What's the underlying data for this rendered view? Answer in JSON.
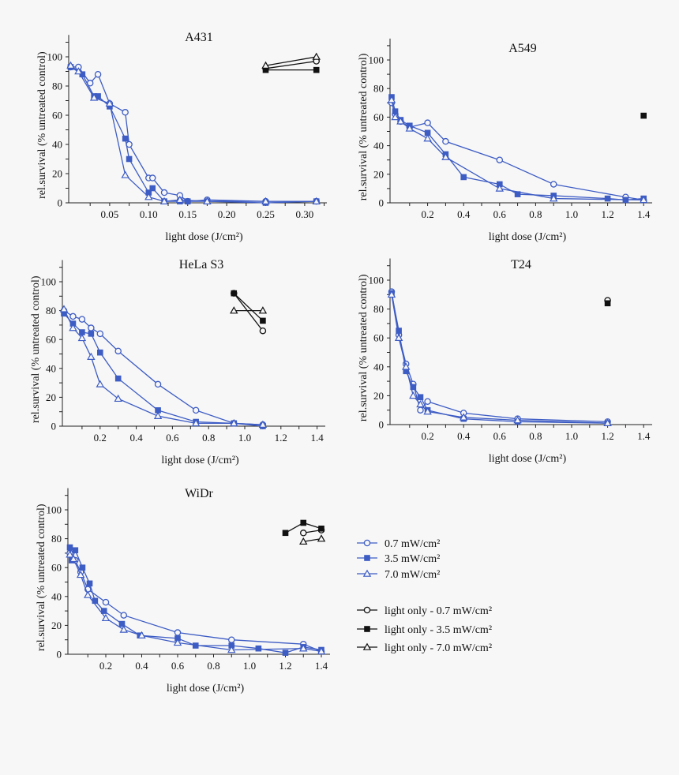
{
  "colors": {
    "treated": "#3d5cc4",
    "light_only": "#111111"
  },
  "legend": {
    "placement": "right of WiDr panel",
    "entries": [
      {
        "label": "0.7 mW/cm²",
        "marker": "circle-open",
        "group": "treated"
      },
      {
        "label": "3.5 mW/cm²",
        "marker": "square-filled",
        "group": "treated"
      },
      {
        "label": "7.0 mW/cm²",
        "marker": "triangle-open",
        "group": "treated"
      },
      {
        "label": "light only - 0.7 mW/cm²",
        "marker": "circle-open",
        "group": "light_only"
      },
      {
        "label": "light only - 3.5 mW/cm²",
        "marker": "square-filled",
        "group": "light_only"
      },
      {
        "label": "light only - 7.0 mW/cm²",
        "marker": "triangle-open",
        "group": "light_only"
      }
    ]
  },
  "chart_data": [
    {
      "type": "line",
      "title": "A431",
      "xlabel": "light dose (J/cm²)",
      "ylabel": "rel.survival (% untreated control)",
      "xlim": [
        0,
        0.33
      ],
      "ylim": [
        0,
        115
      ],
      "xticks": [
        "0.05",
        "0.10",
        "0.15",
        "0.20",
        "0.25",
        "0.30"
      ],
      "xtick_values": [
        0.05,
        0.1,
        0.15,
        0.2,
        0.25,
        0.3
      ],
      "xminor": 0.025,
      "yticks": [
        "0",
        "20",
        "40",
        "60",
        "80",
        "100"
      ],
      "ytick_values": [
        0,
        20,
        40,
        60,
        80,
        100
      ],
      "grid": false,
      "series": [
        {
          "legend": 0,
          "points": [
            [
              0,
              93
            ],
            [
              0.01,
              93
            ],
            [
              0.025,
              82
            ],
            [
              0.035,
              88
            ],
            [
              0.05,
              68
            ],
            [
              0.07,
              62
            ],
            [
              0.075,
              40
            ],
            [
              0.1,
              17
            ],
            [
              0.105,
              17
            ],
            [
              0.12,
              7
            ],
            [
              0.14,
              5
            ],
            [
              0.15,
              1
            ],
            [
              0.175,
              2
            ],
            [
              0.25,
              1
            ],
            [
              0.315,
              1
            ]
          ]
        },
        {
          "legend": 1,
          "points": [
            [
              0,
              93
            ],
            [
              0.015,
              88
            ],
            [
              0.03,
              73
            ],
            [
              0.035,
              73
            ],
            [
              0.05,
              66
            ],
            [
              0.07,
              44
            ],
            [
              0.075,
              30
            ],
            [
              0.1,
              7
            ],
            [
              0.105,
              10
            ],
            [
              0.12,
              1
            ],
            [
              0.14,
              1
            ],
            [
              0.15,
              1
            ],
            [
              0.175,
              1
            ],
            [
              0.25,
              0
            ],
            [
              0.315,
              1
            ]
          ]
        },
        {
          "legend": 2,
          "points": [
            [
              0,
              94
            ],
            [
              0.01,
              90
            ],
            [
              0.03,
              72
            ],
            [
              0.05,
              68
            ],
            [
              0.07,
              19
            ],
            [
              0.1,
              4
            ],
            [
              0.12,
              1
            ],
            [
              0.14,
              2
            ],
            [
              0.175,
              1
            ],
            [
              0.25,
              1
            ],
            [
              0.315,
              1
            ]
          ]
        },
        {
          "legend": 3,
          "points": [
            [
              0.25,
              92
            ],
            [
              0.315,
              97
            ]
          ]
        },
        {
          "legend": 4,
          "points": [
            [
              0.25,
              91
            ],
            [
              0.315,
              91
            ]
          ]
        },
        {
          "legend": 5,
          "points": [
            [
              0.25,
              94
            ],
            [
              0.315,
              100
            ]
          ]
        }
      ]
    },
    {
      "type": "line",
      "title": "A549",
      "xlabel": "light dose (J/cm²)",
      "ylabel": "rel.survival (% untreated control)",
      "xlim": [
        0,
        1.45
      ],
      "ylim": [
        0,
        115
      ],
      "xticks": [
        "0.2",
        "0.4",
        "0.6",
        "0.8",
        "1.0",
        "1.2",
        "1.4"
      ],
      "xtick_values": [
        0.2,
        0.4,
        0.6,
        0.8,
        1.0,
        1.2,
        1.4
      ],
      "xminor": 0.1,
      "yticks": [
        "0",
        "20",
        "40",
        "60",
        "80",
        "100"
      ],
      "ytick_values": [
        0,
        20,
        40,
        60,
        80,
        100
      ],
      "grid": false,
      "series": [
        {
          "legend": 0,
          "points": [
            [
              0,
              70
            ],
            [
              0.02,
              62
            ],
            [
              0.05,
              57
            ],
            [
              0.1,
              53
            ],
            [
              0.2,
              56
            ],
            [
              0.3,
              43
            ],
            [
              0.6,
              30
            ],
            [
              0.9,
              13
            ],
            [
              1.3,
              4
            ],
            [
              1.4,
              2
            ]
          ]
        },
        {
          "legend": 1,
          "points": [
            [
              0,
              74
            ],
            [
              0.02,
              64
            ],
            [
              0.05,
              58
            ],
            [
              0.1,
              54
            ],
            [
              0.2,
              49
            ],
            [
              0.3,
              34
            ],
            [
              0.4,
              18
            ],
            [
              0.6,
              13
            ],
            [
              0.7,
              6
            ],
            [
              0.9,
              5
            ],
            [
              1.2,
              3
            ],
            [
              1.3,
              2
            ],
            [
              1.4,
              3
            ]
          ]
        },
        {
          "legend": 2,
          "points": [
            [
              0,
              72
            ],
            [
              0.02,
              60
            ],
            [
              0.05,
              57
            ],
            [
              0.1,
              52
            ],
            [
              0.2,
              45
            ],
            [
              0.3,
              32
            ],
            [
              0.6,
              10
            ],
            [
              0.9,
              3
            ],
            [
              1.4,
              2
            ]
          ]
        },
        {
          "legend": 4,
          "points": [
            [
              1.4,
              61
            ]
          ]
        }
      ]
    },
    {
      "type": "line",
      "title": "HeLa S3",
      "xlabel": "light dose (J/cm²)",
      "ylabel": "rel.survival (% untreated control)",
      "xlim": [
        0,
        1.45
      ],
      "ylim": [
        0,
        115
      ],
      "xticks": [
        "0.2",
        "0.4",
        "0.6",
        "0.8",
        "1.0",
        "1.2",
        "1.4"
      ],
      "xtick_values": [
        0.2,
        0.4,
        0.6,
        0.8,
        1.0,
        1.2,
        1.4
      ],
      "xminor": 0.1,
      "yticks": [
        "0",
        "20",
        "40",
        "60",
        "80",
        "100"
      ],
      "ytick_values": [
        0,
        20,
        40,
        60,
        80,
        100
      ],
      "grid": false,
      "series": [
        {
          "legend": 0,
          "points": [
            [
              0,
              80
            ],
            [
              0.05,
              76
            ],
            [
              0.1,
              74
            ],
            [
              0.15,
              68
            ],
            [
              0.2,
              64
            ],
            [
              0.3,
              52
            ],
            [
              0.52,
              29
            ],
            [
              0.73,
              11
            ],
            [
              0.94,
              2
            ],
            [
              1.1,
              1
            ]
          ]
        },
        {
          "legend": 1,
          "points": [
            [
              0,
              78
            ],
            [
              0.05,
              71
            ],
            [
              0.1,
              65
            ],
            [
              0.15,
              64
            ],
            [
              0.2,
              51
            ],
            [
              0.3,
              33
            ],
            [
              0.52,
              11
            ],
            [
              0.73,
              3
            ],
            [
              0.94,
              2
            ],
            [
              1.1,
              0
            ]
          ]
        },
        {
          "legend": 2,
          "points": [
            [
              0,
              81
            ],
            [
              0.05,
              68
            ],
            [
              0.1,
              61
            ],
            [
              0.15,
              48
            ],
            [
              0.2,
              29
            ],
            [
              0.3,
              19
            ],
            [
              0.52,
              7
            ],
            [
              0.73,
              2
            ],
            [
              0.94,
              2
            ],
            [
              1.1,
              1
            ]
          ]
        },
        {
          "legend": 3,
          "points": [
            [
              0.94,
              92
            ],
            [
              1.1,
              66
            ]
          ]
        },
        {
          "legend": 4,
          "points": [
            [
              0.94,
              92
            ],
            [
              1.1,
              73
            ]
          ]
        },
        {
          "legend": 5,
          "points": [
            [
              0.94,
              80
            ],
            [
              1.1,
              80
            ]
          ]
        }
      ]
    },
    {
      "type": "line",
      "title": "T24",
      "xlabel": "light dose (J/cm²)",
      "ylabel": "rel.survival (% untreated control)",
      "xlim": [
        0,
        1.45
      ],
      "ylim": [
        0,
        115
      ],
      "xticks": [
        "0.2",
        "0.4",
        "0.6",
        "0.8",
        "1.0",
        "1.2",
        "1.4"
      ],
      "xtick_values": [
        0.2,
        0.4,
        0.6,
        0.8,
        1.0,
        1.2,
        1.4
      ],
      "xminor": 0.1,
      "yticks": [
        "0",
        "20",
        "40",
        "60",
        "80",
        "100"
      ],
      "ytick_values": [
        0,
        20,
        40,
        60,
        80,
        100
      ],
      "grid": false,
      "series": [
        {
          "legend": 0,
          "points": [
            [
              0,
              92
            ],
            [
              0.04,
              62
            ],
            [
              0.08,
              42
            ],
            [
              0.12,
              28
            ],
            [
              0.16,
              10
            ],
            [
              0.2,
              16
            ],
            [
              0.4,
              8
            ],
            [
              0.7,
              4
            ],
            [
              1.2,
              2
            ]
          ]
        },
        {
          "legend": 1,
          "points": [
            [
              0,
              91
            ],
            [
              0.04,
              65
            ],
            [
              0.08,
              37
            ],
            [
              0.12,
              26
            ],
            [
              0.16,
              19
            ],
            [
              0.2,
              10
            ],
            [
              0.4,
              4
            ],
            [
              0.7,
              2
            ],
            [
              1.2,
              1
            ]
          ]
        },
        {
          "legend": 2,
          "points": [
            [
              0,
              90
            ],
            [
              0.04,
              60
            ],
            [
              0.08,
              40
            ],
            [
              0.12,
              20
            ],
            [
              0.16,
              14
            ],
            [
              0.2,
              9
            ],
            [
              0.4,
              5
            ],
            [
              0.7,
              3
            ],
            [
              1.2,
              1
            ]
          ]
        },
        {
          "legend": 3,
          "points": [
            [
              1.2,
              86
            ]
          ]
        },
        {
          "legend": 4,
          "points": [
            [
              1.2,
              84
            ]
          ]
        }
      ]
    },
    {
      "type": "line",
      "title": "WiDr",
      "xlabel": "light dose (J/cm²)",
      "ylabel": "rel.survival (% untreated control)",
      "xlim": [
        0,
        1.45
      ],
      "ylim": [
        0,
        115
      ],
      "xticks": [
        "0.2",
        "0.4",
        "0.6",
        "0.8",
        "1.0",
        "1.2",
        "1.4"
      ],
      "xtick_values": [
        0.2,
        0.4,
        0.6,
        0.8,
        1.0,
        1.2,
        1.4
      ],
      "xminor": 0.1,
      "yticks": [
        "0",
        "20",
        "40",
        "60",
        "80",
        "100"
      ],
      "ytick_values": [
        0,
        20,
        40,
        60,
        80,
        100
      ],
      "grid": false,
      "series": [
        {
          "legend": 0,
          "points": [
            [
              0,
              70
            ],
            [
              0.03,
              65
            ],
            [
              0.06,
              57
            ],
            [
              0.1,
              45
            ],
            [
              0.2,
              36
            ],
            [
              0.3,
              27
            ],
            [
              0.6,
              15
            ],
            [
              0.9,
              10
            ],
            [
              1.3,
              7
            ],
            [
              1.4,
              2
            ]
          ]
        },
        {
          "legend": 1,
          "points": [
            [
              0,
              74
            ],
            [
              0.01,
              65
            ],
            [
              0.03,
              72
            ],
            [
              0.07,
              60
            ],
            [
              0.11,
              49
            ],
            [
              0.14,
              37
            ],
            [
              0.19,
              30
            ],
            [
              0.29,
              21
            ],
            [
              0.39,
              13
            ],
            [
              0.6,
              11
            ],
            [
              0.7,
              6
            ],
            [
              0.9,
              6
            ],
            [
              1.05,
              4
            ],
            [
              1.2,
              1
            ],
            [
              1.3,
              5
            ],
            [
              1.4,
              3
            ]
          ]
        },
        {
          "legend": 2,
          "points": [
            [
              0,
              69
            ],
            [
              0.02,
              66
            ],
            [
              0.06,
              55
            ],
            [
              0.1,
              41
            ],
            [
              0.2,
              25
            ],
            [
              0.3,
              17
            ],
            [
              0.4,
              13
            ],
            [
              0.6,
              8
            ],
            [
              0.9,
              3
            ],
            [
              1.3,
              4
            ],
            [
              1.4,
              2
            ]
          ]
        },
        {
          "legend": 3,
          "points": [
            [
              1.3,
              84
            ],
            [
              1.4,
              86
            ]
          ]
        },
        {
          "legend": 4,
          "points": [
            [
              1.2,
              84
            ],
            [
              1.3,
              91
            ],
            [
              1.4,
              87
            ]
          ]
        },
        {
          "legend": 5,
          "points": [
            [
              1.3,
              78
            ],
            [
              1.4,
              80
            ]
          ]
        }
      ]
    }
  ]
}
